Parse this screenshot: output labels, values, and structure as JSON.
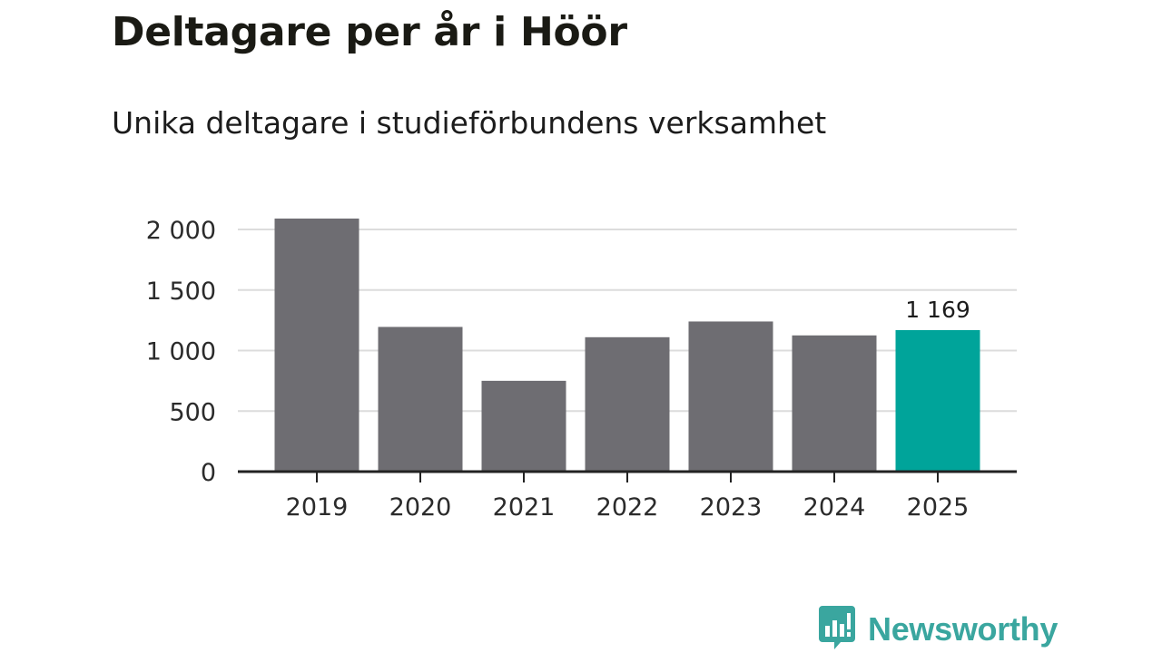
{
  "title": "Deltagare per år i Höör",
  "subtitle": "Unika deltagare i studieförbundens verksamhet",
  "brand": {
    "name": "Newsworthy",
    "icon": "newsworthy-logo-icon",
    "color": "#3aa69f"
  },
  "chart_data": {
    "type": "bar",
    "title": "Deltagare per år i Höör",
    "subtitle": "Unika deltagare i studieförbundens verksamhet",
    "xlabel": "",
    "ylabel": "",
    "categories": [
      "2019",
      "2020",
      "2021",
      "2022",
      "2023",
      "2024",
      "2025"
    ],
    "values": [
      2090,
      1195,
      750,
      1110,
      1240,
      1125,
      1169
    ],
    "ylim": [
      0,
      2000
    ],
    "yticks": [
      0,
      500,
      1000,
      1500,
      2000
    ],
    "ytick_labels": [
      "0",
      "500",
      "1 000",
      "1 500",
      "2 000"
    ],
    "grid": true,
    "legend": "none",
    "bar_color": "#6e6d72",
    "highlight_color": "#00a49a",
    "highlight_index": 6,
    "data_labels": [
      {
        "index": 6,
        "text": "1 169"
      }
    ]
  }
}
